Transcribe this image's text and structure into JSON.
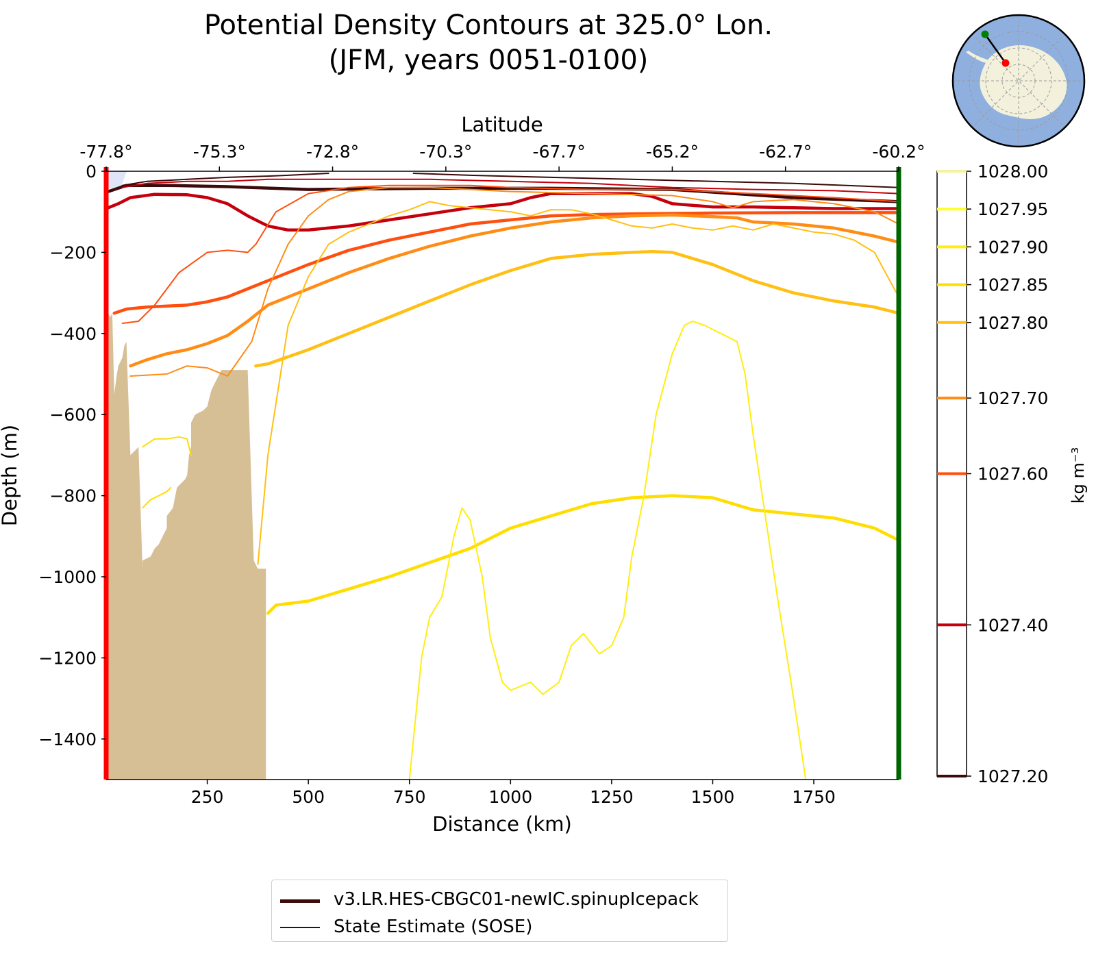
{
  "title": {
    "line1": "Potential Density Contours at 325.0° Lon.",
    "line2": "(JFM, years 0051-0100)"
  },
  "chart_data": {
    "type": "line",
    "title": "Potential Density Contours at 325.0° Lon. (JFM, years 0051-0100)",
    "xlabel": "Distance (km)",
    "ylabel": "Depth (m)",
    "top_xlabel": "Latitude",
    "xlim": [
      0,
      1960
    ],
    "ylim": [
      -1500,
      0
    ],
    "x_ticks": [
      250,
      500,
      750,
      1000,
      1250,
      1500,
      1750
    ],
    "x_tick_labels": [
      "250",
      "500",
      "750",
      "1000",
      "1250",
      "1500",
      "1750"
    ],
    "y_ticks": [
      0,
      -200,
      -400,
      -600,
      -800,
      -1000,
      -1200,
      -1400
    ],
    "y_tick_labels": [
      "0",
      "−200",
      "−400",
      "−600",
      "−800",
      "−1000",
      "−1200",
      "−1400"
    ],
    "top_ticks": [
      0,
      280,
      560,
      840,
      1120,
      1400,
      1680,
      1960
    ],
    "top_tick_labels": [
      "-77.8°",
      "-75.3°",
      "-72.8°",
      "-70.3°",
      "-67.7°",
      "-65.2°",
      "-62.7°",
      "-60.2°"
    ],
    "colorbar": {
      "label": "kg m⁻³",
      "levels": [
        1027.2,
        1027.4,
        1027.6,
        1027.7,
        1027.8,
        1027.85,
        1027.9,
        1027.95,
        1028.0
      ],
      "tick_labels": [
        "1027.20",
        "1027.40",
        "1027.60",
        "1027.70",
        "1027.80",
        "1027.85",
        "1027.90",
        "1027.95",
        "1028.00"
      ],
      "colors": [
        "#3c0a0a",
        "#c4000d",
        "#ff4f0f",
        "#ff8c14",
        "#ffbf14",
        "#ffdd00",
        "#ffee10",
        "#ffff2a",
        "#ffffff"
      ]
    },
    "legend": [
      {
        "label": "v3.LR.HES-CBGC01-newIC.spinupIcepack",
        "style": "thick"
      },
      {
        "label": "State Estimate (SOSE)",
        "style": "thin"
      }
    ],
    "series": [
      {
        "name": "v3.LR.HES-CBGC01-newIC.spinupIcepack",
        "level": "1027.20",
        "x": [
          5,
          50,
          150,
          300,
          500,
          800,
          1100,
          1400,
          1700,
          1960
        ],
        "y": [
          -50,
          -35,
          -35,
          -38,
          -45,
          -42,
          -42,
          -45,
          -65,
          -75
        ]
      },
      {
        "name": "v3.LR.HES-CBGC01-newIC.spinupIcepack",
        "level": "1027.40",
        "x": [
          5,
          30,
          60,
          120,
          200,
          250,
          300,
          350,
          400,
          450,
          500,
          600,
          700,
          800,
          900,
          1000,
          1050,
          1100,
          1200,
          1300,
          1350,
          1400,
          1500,
          1600,
          1700,
          1800,
          1960
        ],
        "y": [
          -90,
          -80,
          -65,
          -57,
          -58,
          -65,
          -80,
          -110,
          -135,
          -145,
          -145,
          -135,
          -120,
          -105,
          -90,
          -80,
          -65,
          -55,
          -55,
          -55,
          -62,
          -80,
          -88,
          -88,
          -90,
          -92,
          -92
        ]
      },
      {
        "name": "v3.LR.HES-CBGC01-newIC.spinupIcepack",
        "level": "1027.60",
        "x": [
          20,
          50,
          100,
          200,
          250,
          300,
          400,
          500,
          600,
          700,
          800,
          900,
          1000,
          1100,
          1200,
          1300,
          1500,
          1700,
          1960
        ],
        "y": [
          -350,
          -340,
          -335,
          -330,
          -322,
          -310,
          -270,
          -230,
          -195,
          -170,
          -150,
          -130,
          -120,
          -110,
          -107,
          -105,
          -103,
          -102,
          -102
        ]
      },
      {
        "name": "v3.LR.HES-CBGC01-newIC.spinupIcepack",
        "level": "1027.70",
        "x": [
          60,
          100,
          150,
          200,
          250,
          300,
          350,
          400,
          500,
          600,
          700,
          800,
          900,
          1000,
          1100,
          1200,
          1300,
          1400,
          1500,
          1560,
          1600,
          1700,
          1800,
          1900,
          1960
        ],
        "y": [
          -480,
          -465,
          -450,
          -440,
          -425,
          -405,
          -370,
          -330,
          -290,
          -250,
          -215,
          -185,
          -160,
          -140,
          -125,
          -115,
          -110,
          -108,
          -112,
          -115,
          -125,
          -130,
          -140,
          -160,
          -175
        ]
      },
      {
        "name": "v3.LR.HES-CBGC01-newIC.spinupIcepack",
        "level": "1027.80",
        "x": [
          370,
          400,
          500,
          600,
          700,
          800,
          900,
          1000,
          1100,
          1200,
          1300,
          1350,
          1400,
          1500,
          1600,
          1700,
          1800,
          1900,
          1960
        ],
        "y": [
          -480,
          -475,
          -440,
          -400,
          -360,
          -320,
          -280,
          -245,
          -215,
          -205,
          -200,
          -198,
          -200,
          -230,
          -270,
          -300,
          -320,
          -335,
          -350
        ]
      },
      {
        "name": "v3.LR.HES-CBGC01-newIC.spinupIcepack",
        "level": "1027.85",
        "x": [
          400,
          420,
          500,
          600,
          700,
          800,
          900,
          1000,
          1100,
          1200,
          1300,
          1400,
          1500,
          1600,
          1700,
          1800,
          1900,
          1960
        ],
        "y": [
          -1090,
          -1070,
          -1060,
          -1030,
          -1000,
          -965,
          -930,
          -880,
          -850,
          -820,
          -805,
          -800,
          -805,
          -835,
          -845,
          -855,
          -880,
          -910
        ]
      },
      {
        "name": "State Estimate (SOSE)",
        "level": "1027.20",
        "x": [
          40,
          100,
          200,
          300,
          400,
          450,
          550
        ],
        "y": [
          -35,
          -25,
          -20,
          -15,
          -12,
          -10,
          -5
        ]
      },
      {
        "name": "State Estimate (SOSE)",
        "level": "1027.20",
        "x": [
          760,
          900,
          1100,
          1300,
          1500,
          1700,
          1960
        ],
        "y": [
          -5,
          -10,
          -15,
          -20,
          -25,
          -30,
          -40
        ]
      },
      {
        "name": "State Estimate (SOSE)",
        "level": "1027.40",
        "x": [
          40,
          100,
          200,
          300,
          400,
          500,
          600,
          800,
          1000,
          1200,
          1400,
          1600,
          1800,
          1960
        ],
        "y": [
          -40,
          -30,
          -25,
          -25,
          -20,
          -20,
          -20,
          -20,
          -25,
          -30,
          -40,
          -45,
          -48,
          -55
        ]
      },
      {
        "name": "State Estimate (SOSE)",
        "level": "1027.60",
        "x": [
          40,
          80,
          120,
          180,
          250,
          300,
          350,
          370,
          420,
          500,
          600,
          700,
          800,
          900,
          1000,
          1200,
          1400,
          1500,
          1600,
          1700,
          1800,
          1960
        ],
        "y": [
          -375,
          -370,
          -330,
          -250,
          -200,
          -195,
          -200,
          -180,
          -100,
          -55,
          -40,
          -35,
          -35,
          -35,
          -40,
          -45,
          -45,
          -50,
          -55,
          -60,
          -65,
          -75
        ]
      },
      {
        "name": "State Estimate (SOSE)",
        "level": "1027.70",
        "x": [
          60,
          150,
          200,
          250,
          300,
          360,
          400,
          450,
          500,
          550,
          600,
          700,
          800,
          900,
          1000,
          1200,
          1400,
          1500,
          1550,
          1600,
          1700,
          1800,
          1900,
          1960
        ],
        "y": [
          -505,
          -500,
          -480,
          -485,
          -505,
          -420,
          -290,
          -180,
          -110,
          -70,
          -50,
          -40,
          -40,
          -45,
          -50,
          -55,
          -60,
          -75,
          -90,
          -75,
          -70,
          -80,
          -100,
          -130
        ]
      },
      {
        "name": "State Estimate (SOSE)",
        "level": "1027.80",
        "x": [
          375,
          400,
          450,
          500,
          550,
          600,
          650,
          700,
          750,
          800,
          850,
          900,
          950,
          1000,
          1050,
          1100,
          1150,
          1200,
          1250,
          1300,
          1350,
          1400,
          1450,
          1500,
          1550,
          1600,
          1650,
          1700,
          1750,
          1800,
          1850,
          1900,
          1960
        ],
        "y": [
          -970,
          -700,
          -380,
          -260,
          -180,
          -150,
          -130,
          -110,
          -95,
          -75,
          -85,
          -90,
          -95,
          -100,
          -110,
          -95,
          -95,
          -105,
          -120,
          -135,
          -140,
          -130,
          -140,
          -145,
          -135,
          -145,
          -130,
          -140,
          -150,
          -155,
          -170,
          -200,
          -310
        ]
      },
      {
        "name": "State Estimate (SOSE)",
        "level": "1027.85",
        "x": [
          90,
          120,
          150,
          180,
          200,
          210
        ],
        "y": [
          -680,
          -660,
          -660,
          -655,
          -660,
          -700
        ]
      },
      {
        "name": "State Estimate (SOSE)",
        "level": "1027.85",
        "x": [
          90,
          110,
          130,
          150,
          160
        ],
        "y": [
          -830,
          -810,
          -800,
          -790,
          -780
        ]
      },
      {
        "name": "State Estimate (SOSE)",
        "level": "1027.90",
        "x": [
          750,
          780,
          800,
          830,
          860,
          880,
          900,
          930,
          950,
          980,
          1000,
          1050,
          1080,
          1120,
          1150,
          1180,
          1220,
          1250,
          1280,
          1300,
          1330,
          1360,
          1400,
          1430,
          1450,
          1480,
          1520,
          1560,
          1580,
          1600,
          1630,
          1660,
          1700,
          1730
        ],
        "y": [
          -1500,
          -1200,
          -1100,
          -1050,
          -900,
          -830,
          -860,
          -1000,
          -1150,
          -1260,
          -1280,
          -1260,
          -1290,
          -1260,
          -1170,
          -1140,
          -1190,
          -1170,
          -1100,
          -950,
          -800,
          -600,
          -450,
          -380,
          -370,
          -380,
          -400,
          -420,
          -500,
          -650,
          -850,
          -1050,
          -1300,
          -1500
        ]
      }
    ]
  },
  "inset_map": {
    "description_visible": "polar map"
  }
}
